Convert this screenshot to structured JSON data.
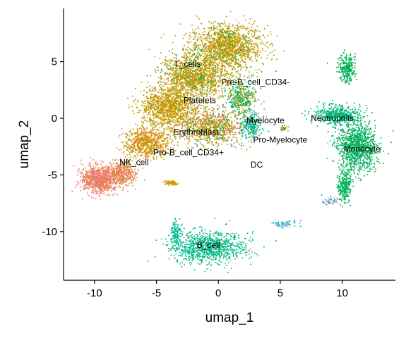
{
  "chart_data": {
    "type": "scatter",
    "title": "",
    "xlabel": "umap_1",
    "ylabel": "umap_2",
    "xlim": [
      -12.5,
      14.3
    ],
    "ylim": [
      -14.3,
      9.7
    ],
    "x_ticks": [
      {
        "value": -10,
        "label": "-10"
      },
      {
        "value": -5,
        "label": "-5"
      },
      {
        "value": 0,
        "label": "0"
      },
      {
        "value": 5,
        "label": "5"
      },
      {
        "value": 10,
        "label": "10"
      }
    ],
    "y_ticks": [
      {
        "value": 5,
        "label": "5"
      },
      {
        "value": 0,
        "label": "0"
      },
      {
        "value": -5,
        "label": "-5"
      },
      {
        "value": -10,
        "label": "-10"
      }
    ],
    "grid": false,
    "legend": "none",
    "colors": {
      "salmon": "#F07C6C",
      "olive": "#C49A00",
      "orange": "#D39200",
      "green": "#00B050",
      "teal": "#00BF9C",
      "purple": "#B79FFF",
      "pink": "#F068C8",
      "lime": "#7CAE00"
    },
    "clusters": [
      {
        "label": "T_cells",
        "x": -2.5,
        "y": 4.8
      },
      {
        "label": "Pre-B_cell_CD34-",
        "x": 3.0,
        "y": 3.2
      },
      {
        "label": "Platelets",
        "x": -1.5,
        "y": 1.6
      },
      {
        "label": "Myelocyte",
        "x": 3.8,
        "y": -0.2
      },
      {
        "label": "Neutrophils",
        "x": 9.2,
        "y": 0.0
      },
      {
        "label": "Erythroblast",
        "x": -1.8,
        "y": -1.2
      },
      {
        "label": "Pro-Myelocyte",
        "x": 5.0,
        "y": -1.9
      },
      {
        "label": "Pro-B_cell_CD34+",
        "x": -2.4,
        "y": -3.0
      },
      {
        "label": "Monocyte",
        "x": 11.6,
        "y": -2.7
      },
      {
        "label": "NK_cell",
        "x": -6.8,
        "y": -3.9
      },
      {
        "label": "DC",
        "x": 3.1,
        "y": -4.1
      },
      {
        "label": "B_cell",
        "x": -0.8,
        "y": -11.2
      }
    ]
  }
}
